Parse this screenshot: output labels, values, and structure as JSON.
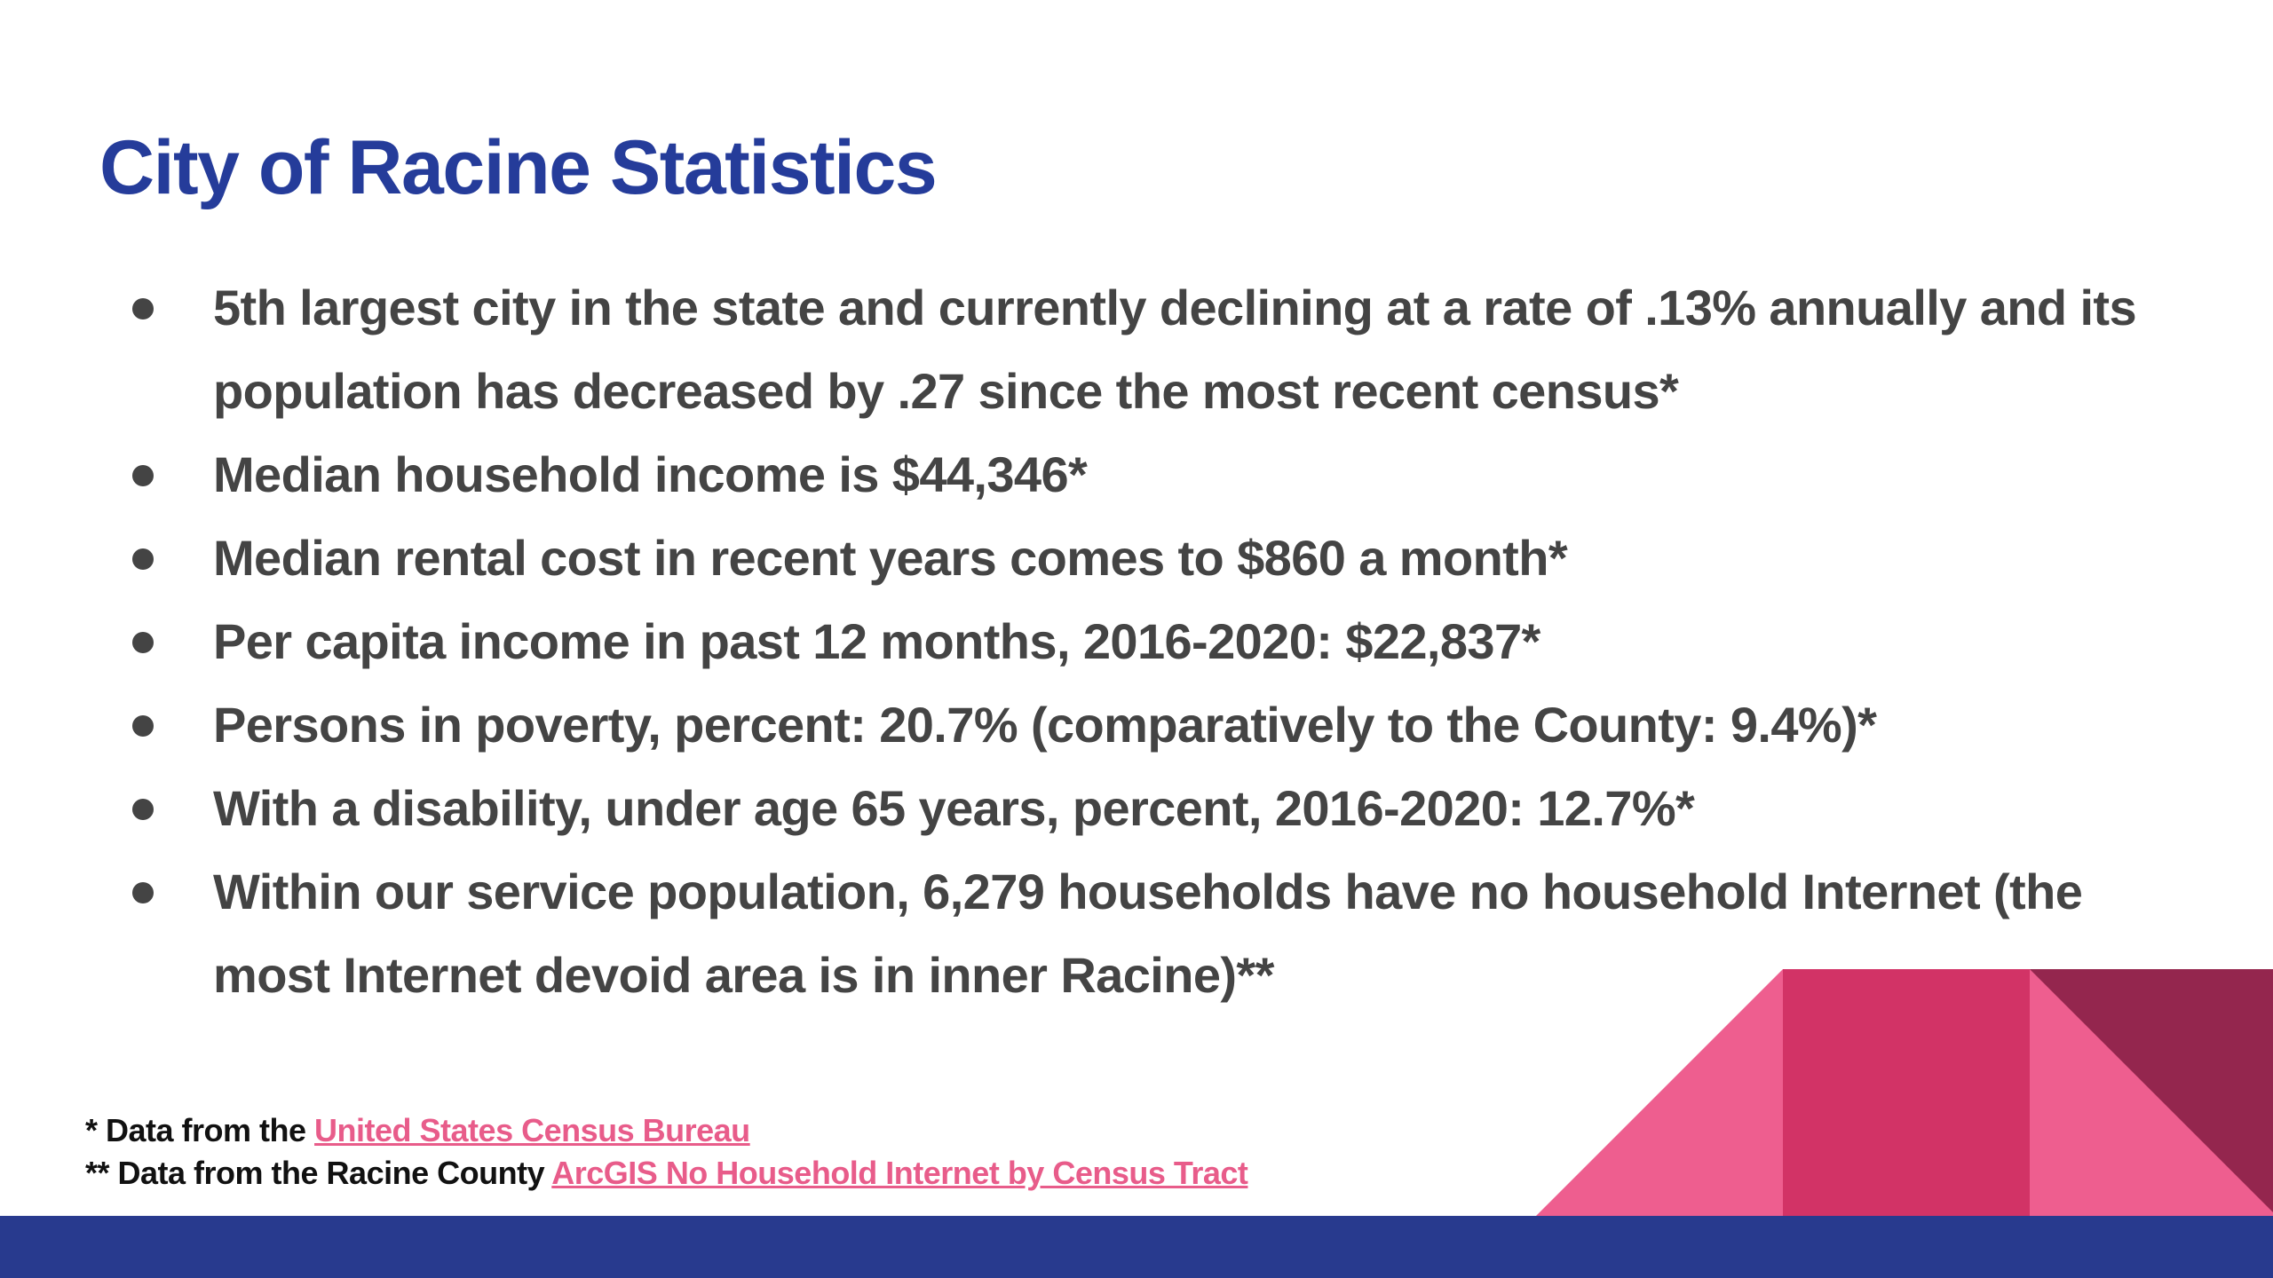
{
  "slide": {
    "title": "City of Racine Statistics",
    "bullets": [
      "5th largest city in the state and currently declining at a rate of .13% annually and its population has decreased by .27 since the most recent census*",
      "Median household income is $44,346*",
      "Median rental cost in recent years comes to $860 a month*",
      "Per capita income in past 12 months, 2016-2020: $22,837*",
      "Persons in poverty, percent: 20.7% (comparatively to the County: 9.4%)*",
      "With a disability, under age 65 years, percent, 2016-2020: 12.7%*",
      "Within our service population, 6,279 households have no household Internet (the most Internet devoid area is in inner Racine)**"
    ],
    "footnotes": {
      "census": {
        "prefix": "* Data from the ",
        "link_text": "United States Census Bureau"
      },
      "arcgis": {
        "prefix": "** Data from the Racine County ",
        "link_text": "ArcGIS No Household Internet by Census Tract"
      }
    }
  },
  "colors": {
    "title": "#253C9A",
    "body_text": "#444444",
    "link": "#E85C8A",
    "bar": "#283A8E",
    "decor_light_pink": "#EE5E8F",
    "decor_mid_pink": "#D23366",
    "decor_dark_pink": "#94264E"
  }
}
